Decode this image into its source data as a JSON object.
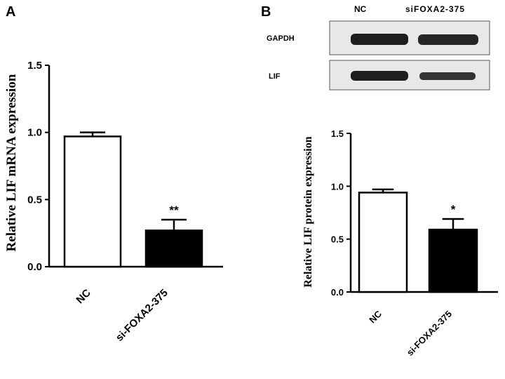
{
  "panels": {
    "a_label": "A",
    "b_label": "B"
  },
  "western_blot": {
    "lanes": [
      "NC",
      "siFOXA2-375"
    ],
    "rows": [
      "GAPDH",
      "LIF"
    ]
  },
  "chart_data": [
    {
      "type": "bar",
      "panel": "A",
      "categories": [
        "NC",
        "si-FOXA2-375"
      ],
      "values": [
        0.97,
        0.27
      ],
      "errors": [
        0.03,
        0.08
      ],
      "significance": [
        "",
        "**"
      ],
      "bar_colors": [
        "#ffffff",
        "#000000"
      ],
      "xlabel": "",
      "ylabel": "Relative LIF mRNA expression",
      "ylim": [
        0,
        1.5
      ],
      "yticks": [
        "0.0",
        "0.5",
        "1.0",
        "1.5"
      ],
      "grid": false
    },
    {
      "type": "bar",
      "panel": "B",
      "categories": [
        "NC",
        "si-FOXA2-375"
      ],
      "values": [
        0.94,
        0.59
      ],
      "errors": [
        0.03,
        0.1
      ],
      "significance": [
        "",
        "*"
      ],
      "bar_colors": [
        "#ffffff",
        "#000000"
      ],
      "xlabel": "",
      "ylabel": "Relative LIF protein expression",
      "ylim": [
        0,
        1.5
      ],
      "yticks": [
        "0.0",
        "0.5",
        "1.0",
        "1.5"
      ],
      "grid": false
    }
  ]
}
